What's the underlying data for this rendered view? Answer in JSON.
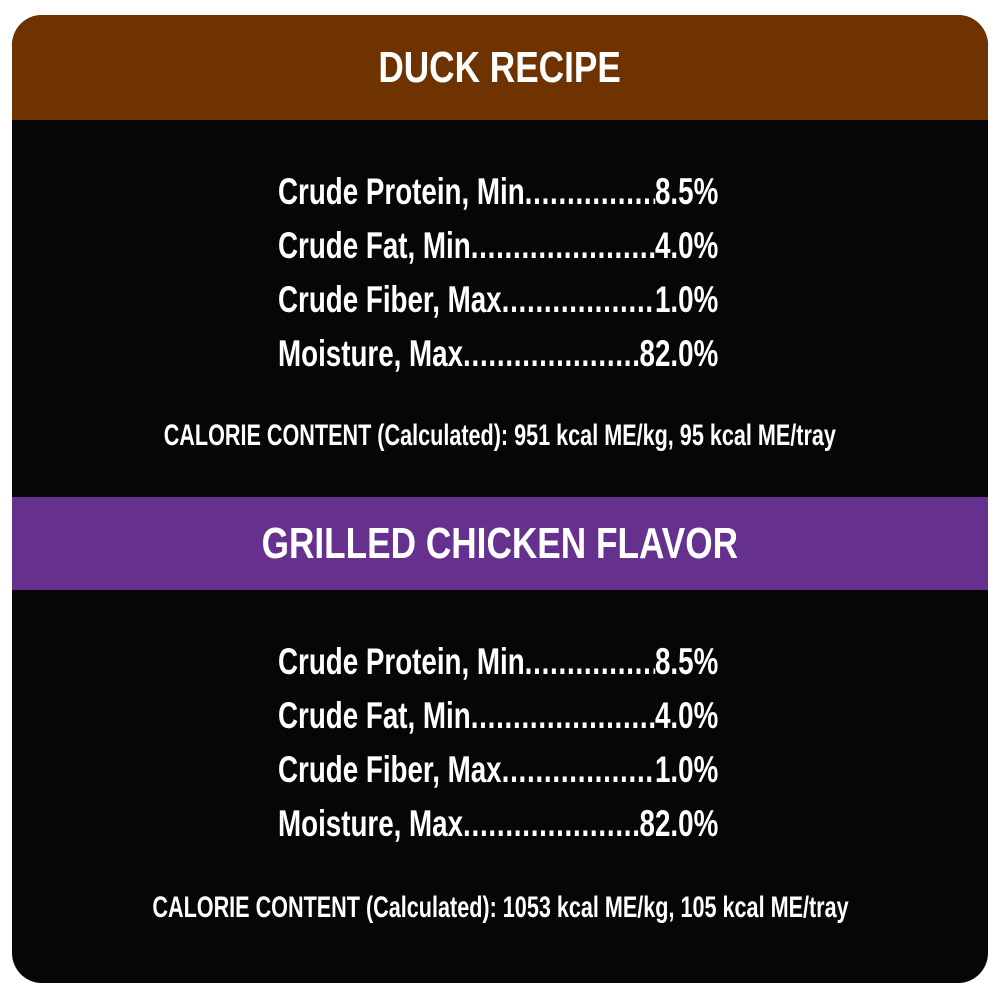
{
  "colors": {
    "duck_header": "#6e3300",
    "chicken_header": "#66308f",
    "background": "#060608",
    "text": "#ffffff"
  },
  "sections": [
    {
      "title": "DUCK RECIPE",
      "nutrients": [
        {
          "label": "Crude Protein, Min",
          "value": "8.5%"
        },
        {
          "label": "Crude Fat, Min",
          "value": "4.0%"
        },
        {
          "label": "Crude Fiber, Max",
          "value": "1.0%"
        },
        {
          "label": "Moisture, Max",
          "value": "82.0%"
        }
      ],
      "calorie": "CALORIE CONTENT (Calculated): 951 kcal ME/kg, 95 kcal ME/tray"
    },
    {
      "title": "GRILLED CHICKEN FLAVOR",
      "nutrients": [
        {
          "label": "Crude Protein, Min",
          "value": "8.5%"
        },
        {
          "label": "Crude Fat, Min",
          "value": "4.0%"
        },
        {
          "label": "Crude Fiber, Max",
          "value": "1.0%"
        },
        {
          "label": "Moisture, Max",
          "value": "82.0%"
        }
      ],
      "calorie": "CALORIE CONTENT (Calculated): 1053 kcal ME/kg, 105 kcal ME/tray"
    }
  ]
}
